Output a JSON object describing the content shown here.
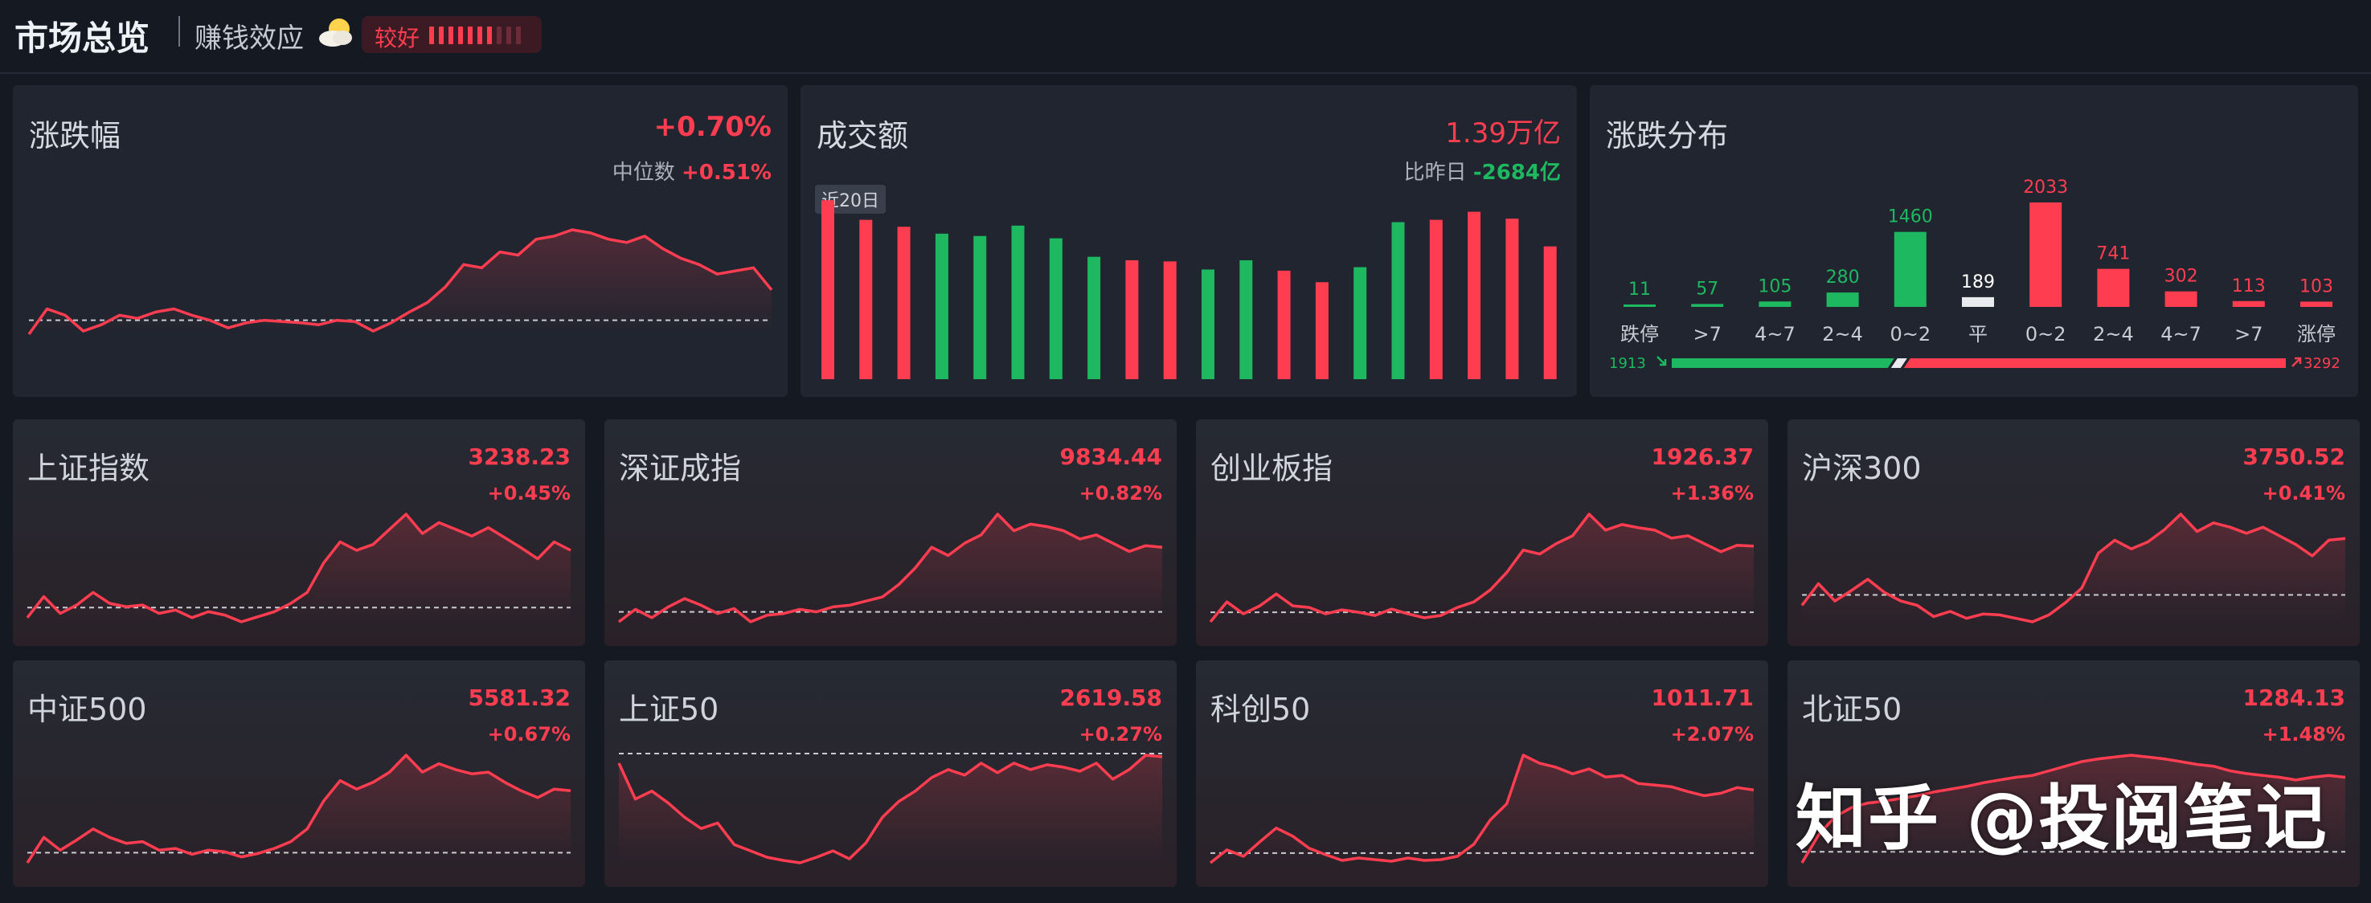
{
  "header": {
    "title": "市场总览",
    "effect_label": "赚钱效应",
    "effect_icon": "sun-cloud-icon",
    "badge": {
      "text": "较好",
      "level": 7,
      "max": 10
    }
  },
  "change_panel": {
    "title": "涨跌幅",
    "value": "+0.70%",
    "median_label": "中位数",
    "median_value": "+0.51%",
    "sparkline": [
      0.0,
      0.4,
      0.3,
      0.05,
      0.15,
      0.3,
      0.25,
      0.35,
      0.4,
      0.3,
      0.22,
      0.1,
      0.18,
      0.22,
      0.2,
      0.18,
      0.15,
      0.22,
      0.2,
      0.05,
      0.18,
      0.35,
      0.5,
      0.75,
      1.1,
      1.05,
      1.3,
      1.25,
      1.5,
      1.55,
      1.65,
      1.6,
      1.5,
      1.45,
      1.55,
      1.35,
      1.2,
      1.1,
      0.95,
      1.0,
      1.05,
      0.7
    ]
  },
  "volume_panel": {
    "title": "成交额",
    "value": "1.39万亿",
    "compare_label": "比昨日",
    "compare_value": "-2684亿",
    "tag": "近20日",
    "bars": [
      {
        "v": 1.55,
        "dir": "up"
      },
      {
        "v": 1.38,
        "dir": "up"
      },
      {
        "v": 1.32,
        "dir": "up"
      },
      {
        "v": 1.26,
        "dir": "down"
      },
      {
        "v": 1.24,
        "dir": "down"
      },
      {
        "v": 1.33,
        "dir": "down"
      },
      {
        "v": 1.22,
        "dir": "down"
      },
      {
        "v": 1.06,
        "dir": "down"
      },
      {
        "v": 1.03,
        "dir": "up"
      },
      {
        "v": 1.02,
        "dir": "up"
      },
      {
        "v": 0.95,
        "dir": "down"
      },
      {
        "v": 1.03,
        "dir": "down"
      },
      {
        "v": 0.94,
        "dir": "up"
      },
      {
        "v": 0.84,
        "dir": "up"
      },
      {
        "v": 0.97,
        "dir": "down"
      },
      {
        "v": 1.36,
        "dir": "down"
      },
      {
        "v": 1.38,
        "dir": "up"
      },
      {
        "v": 1.45,
        "dir": "up"
      },
      {
        "v": 1.39,
        "dir": "up"
      },
      {
        "v": 1.15,
        "dir": "up"
      }
    ]
  },
  "distribution_panel": {
    "title": "涨跌分布",
    "buckets": [
      {
        "label": "跌停",
        "count": "11",
        "value": 11,
        "color": "#1db85f"
      },
      {
        "label": ">7",
        "count": "57",
        "value": 57,
        "color": "#1db85f"
      },
      {
        "label": "4~7",
        "count": "105",
        "value": 105,
        "color": "#1db85f"
      },
      {
        "label": "2~4",
        "count": "280",
        "value": 280,
        "color": "#1db85f"
      },
      {
        "label": "0~2",
        "count": "1460",
        "value": 1460,
        "color": "#1db85f"
      },
      {
        "label": "平",
        "count": "189",
        "value": 189,
        "color": "#e8eaee"
      },
      {
        "label": "0~2",
        "count": "2033",
        "value": 2033,
        "color": "#ff3d50"
      },
      {
        "label": "2~4",
        "count": "741",
        "value": 741,
        "color": "#ff3d50"
      },
      {
        "label": "4~7",
        "count": "302",
        "value": 302,
        "color": "#ff3d50"
      },
      {
        "label": ">7",
        "count": "113",
        "value": 113,
        "color": "#ff3d50"
      },
      {
        "label": "涨停",
        "count": "103",
        "value": 103,
        "color": "#ff3d50"
      }
    ],
    "down_total": "1913",
    "up_total": "3292",
    "down_icon": "arrow-down-right-icon",
    "up_icon": "arrow-up-right-icon"
  },
  "indices": [
    {
      "name": "上证指数",
      "price": "3238.23",
      "change": "+0.45%",
      "spark": [
        0.05,
        0.3,
        0.1,
        0.2,
        0.35,
        0.22,
        0.18,
        0.2,
        0.1,
        0.14,
        0.05,
        0.12,
        0.08,
        0.0,
        0.06,
        0.12,
        0.22,
        0.35,
        0.7,
        0.95,
        0.85,
        0.92,
        1.1,
        1.28,
        1.05,
        1.18,
        1.1,
        1.02,
        1.12,
        1.0,
        0.88,
        0.75,
        0.95,
        0.85
      ]
    },
    {
      "name": "深证成指",
      "price": "9834.44",
      "change": "+0.82%",
      "spark": [
        0.1,
        0.25,
        0.15,
        0.28,
        0.38,
        0.3,
        0.2,
        0.26,
        0.1,
        0.18,
        0.2,
        0.25,
        0.22,
        0.28,
        0.3,
        0.35,
        0.4,
        0.55,
        0.75,
        1.0,
        0.9,
        1.05,
        1.15,
        1.4,
        1.2,
        1.28,
        1.25,
        1.2,
        1.1,
        1.15,
        1.05,
        0.95,
        1.02,
        1.0
      ]
    },
    {
      "name": "创业板指",
      "price": "1926.37",
      "change": "+1.36%",
      "spark": [
        0.1,
        0.35,
        0.2,
        0.3,
        0.45,
        0.3,
        0.28,
        0.2,
        0.25,
        0.22,
        0.18,
        0.26,
        0.2,
        0.15,
        0.18,
        0.28,
        0.35,
        0.5,
        0.72,
        1.0,
        0.95,
        1.08,
        1.18,
        1.45,
        1.25,
        1.32,
        1.28,
        1.25,
        1.15,
        1.18,
        1.08,
        0.98,
        1.06,
        1.05
      ]
    },
    {
      "name": "沪深300",
      "price": "3750.52",
      "change": "+0.41%",
      "spark": [
        0.25,
        0.5,
        0.3,
        0.42,
        0.55,
        0.4,
        0.3,
        0.25,
        0.12,
        0.18,
        0.1,
        0.15,
        0.14,
        0.1,
        0.06,
        0.14,
        0.28,
        0.45,
        0.85,
        1.0,
        0.9,
        0.98,
        1.12,
        1.3,
        1.1,
        1.2,
        1.15,
        1.08,
        1.15,
        1.05,
        0.95,
        0.82,
        1.0,
        1.02
      ]
    },
    {
      "name": "中证500",
      "price": "5581.32",
      "change": "+0.67%",
      "spark": [
        0.05,
        0.35,
        0.2,
        0.32,
        0.45,
        0.35,
        0.28,
        0.3,
        0.2,
        0.22,
        0.15,
        0.2,
        0.18,
        0.12,
        0.16,
        0.22,
        0.3,
        0.45,
        0.78,
        1.02,
        0.92,
        1.0,
        1.12,
        1.32,
        1.12,
        1.22,
        1.15,
        1.1,
        1.12,
        1.0,
        0.9,
        0.82,
        0.92,
        0.9
      ]
    },
    {
      "name": "上证50",
      "price": "2619.58",
      "change": "+0.27%",
      "spark": [
        1.3,
        0.85,
        0.95,
        0.8,
        0.62,
        0.48,
        0.55,
        0.28,
        0.2,
        0.12,
        0.08,
        0.05,
        0.12,
        0.2,
        0.1,
        0.3,
        0.62,
        0.82,
        0.95,
        1.12,
        1.22,
        1.15,
        1.3,
        1.18,
        1.3,
        1.22,
        1.28,
        1.25,
        1.2,
        1.3,
        1.1,
        1.22,
        1.4,
        1.38
      ]
    },
    {
      "name": "科创50",
      "price": "1011.71",
      "change": "+2.07%",
      "spark": [
        0.02,
        0.18,
        0.1,
        0.28,
        0.45,
        0.35,
        0.2,
        0.12,
        0.05,
        0.08,
        0.06,
        0.04,
        0.08,
        0.05,
        0.06,
        0.1,
        0.25,
        0.55,
        0.75,
        1.35,
        1.25,
        1.2,
        1.12,
        1.18,
        1.08,
        1.1,
        1.0,
        0.98,
        0.96,
        0.9,
        0.85,
        0.88,
        0.95,
        0.92
      ]
    },
    {
      "name": "北证50",
      "price": "1284.13",
      "change": "+1.48%",
      "spark": [
        0.05,
        0.35,
        0.55,
        0.65,
        0.7,
        0.72,
        0.75,
        0.78,
        0.82,
        0.85,
        0.88,
        0.92,
        0.95,
        0.98,
        1.0,
        1.05,
        1.1,
        1.15,
        1.18,
        1.2,
        1.22,
        1.2,
        1.18,
        1.15,
        1.12,
        1.1,
        1.05,
        1.02,
        1.0,
        0.98,
        0.95,
        0.98,
        1.0,
        0.98
      ]
    }
  ],
  "watermark": "知乎 @投阅笔记"
}
